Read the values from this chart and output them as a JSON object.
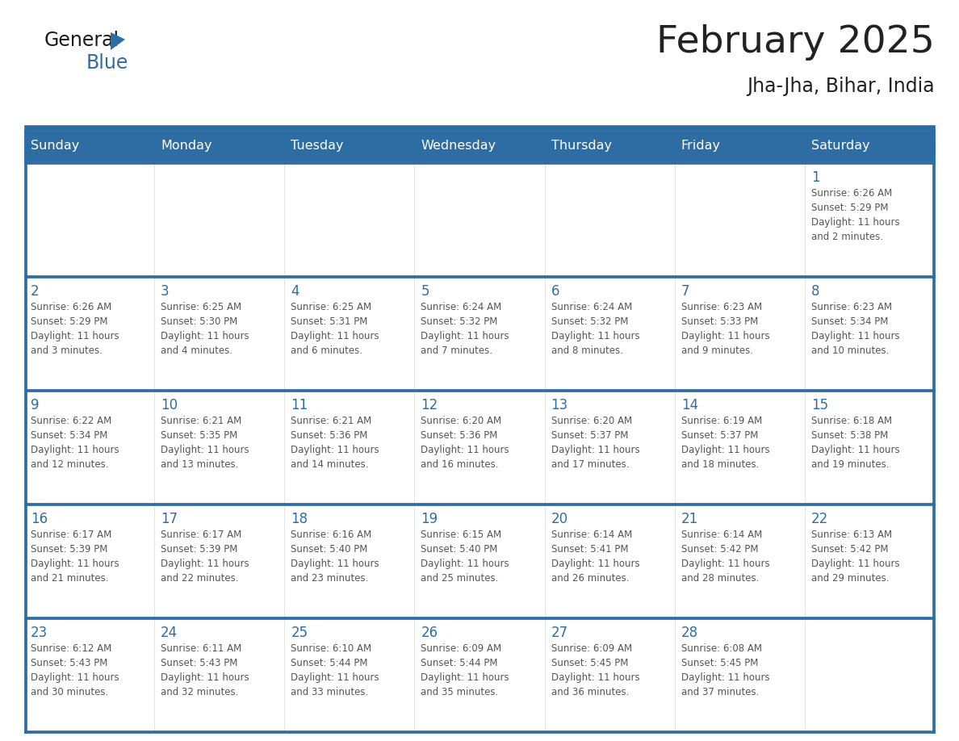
{
  "title": "February 2025",
  "subtitle": "Jha-Jha, Bihar, India",
  "days_of_week": [
    "Sunday",
    "Monday",
    "Tuesday",
    "Wednesday",
    "Thursday",
    "Friday",
    "Saturday"
  ],
  "header_bg": "#2E6DA4",
  "header_text": "#FFFFFF",
  "cell_bg": "#FFFFFF",
  "row_border_color": "#2E6DA4",
  "cell_border_color": "#CCCCCC",
  "day_num_color": "#2E6DA4",
  "text_color": "#555555",
  "title_color": "#222222",
  "calendar_data": [
    [
      null,
      null,
      null,
      null,
      null,
      null,
      {
        "day": 1,
        "sunrise": "6:26 AM",
        "sunset": "5:29 PM",
        "daylight": "11 hours and 2 minutes."
      }
    ],
    [
      {
        "day": 2,
        "sunrise": "6:26 AM",
        "sunset": "5:29 PM",
        "daylight": "11 hours and 3 minutes."
      },
      {
        "day": 3,
        "sunrise": "6:25 AM",
        "sunset": "5:30 PM",
        "daylight": "11 hours and 4 minutes."
      },
      {
        "day": 4,
        "sunrise": "6:25 AM",
        "sunset": "5:31 PM",
        "daylight": "11 hours and 6 minutes."
      },
      {
        "day": 5,
        "sunrise": "6:24 AM",
        "sunset": "5:32 PM",
        "daylight": "11 hours and 7 minutes."
      },
      {
        "day": 6,
        "sunrise": "6:24 AM",
        "sunset": "5:32 PM",
        "daylight": "11 hours and 8 minutes."
      },
      {
        "day": 7,
        "sunrise": "6:23 AM",
        "sunset": "5:33 PM",
        "daylight": "11 hours and 9 minutes."
      },
      {
        "day": 8,
        "sunrise": "6:23 AM",
        "sunset": "5:34 PM",
        "daylight": "11 hours and 10 minutes."
      }
    ],
    [
      {
        "day": 9,
        "sunrise": "6:22 AM",
        "sunset": "5:34 PM",
        "daylight": "11 hours and 12 minutes."
      },
      {
        "day": 10,
        "sunrise": "6:21 AM",
        "sunset": "5:35 PM",
        "daylight": "11 hours and 13 minutes."
      },
      {
        "day": 11,
        "sunrise": "6:21 AM",
        "sunset": "5:36 PM",
        "daylight": "11 hours and 14 minutes."
      },
      {
        "day": 12,
        "sunrise": "6:20 AM",
        "sunset": "5:36 PM",
        "daylight": "11 hours and 16 minutes."
      },
      {
        "day": 13,
        "sunrise": "6:20 AM",
        "sunset": "5:37 PM",
        "daylight": "11 hours and 17 minutes."
      },
      {
        "day": 14,
        "sunrise": "6:19 AM",
        "sunset": "5:37 PM",
        "daylight": "11 hours and 18 minutes."
      },
      {
        "day": 15,
        "sunrise": "6:18 AM",
        "sunset": "5:38 PM",
        "daylight": "11 hours and 19 minutes."
      }
    ],
    [
      {
        "day": 16,
        "sunrise": "6:17 AM",
        "sunset": "5:39 PM",
        "daylight": "11 hours and 21 minutes."
      },
      {
        "day": 17,
        "sunrise": "6:17 AM",
        "sunset": "5:39 PM",
        "daylight": "11 hours and 22 minutes."
      },
      {
        "day": 18,
        "sunrise": "6:16 AM",
        "sunset": "5:40 PM",
        "daylight": "11 hours and 23 minutes."
      },
      {
        "day": 19,
        "sunrise": "6:15 AM",
        "sunset": "5:40 PM",
        "daylight": "11 hours and 25 minutes."
      },
      {
        "day": 20,
        "sunrise": "6:14 AM",
        "sunset": "5:41 PM",
        "daylight": "11 hours and 26 minutes."
      },
      {
        "day": 21,
        "sunrise": "6:14 AM",
        "sunset": "5:42 PM",
        "daylight": "11 hours and 28 minutes."
      },
      {
        "day": 22,
        "sunrise": "6:13 AM",
        "sunset": "5:42 PM",
        "daylight": "11 hours and 29 minutes."
      }
    ],
    [
      {
        "day": 23,
        "sunrise": "6:12 AM",
        "sunset": "5:43 PM",
        "daylight": "11 hours and 30 minutes."
      },
      {
        "day": 24,
        "sunrise": "6:11 AM",
        "sunset": "5:43 PM",
        "daylight": "11 hours and 32 minutes."
      },
      {
        "day": 25,
        "sunrise": "6:10 AM",
        "sunset": "5:44 PM",
        "daylight": "11 hours and 33 minutes."
      },
      {
        "day": 26,
        "sunrise": "6:09 AM",
        "sunset": "5:44 PM",
        "daylight": "11 hours and 35 minutes."
      },
      {
        "day": 27,
        "sunrise": "6:09 AM",
        "sunset": "5:45 PM",
        "daylight": "11 hours and 36 minutes."
      },
      {
        "day": 28,
        "sunrise": "6:08 AM",
        "sunset": "5:45 PM",
        "daylight": "11 hours and 37 minutes."
      },
      null
    ]
  ]
}
